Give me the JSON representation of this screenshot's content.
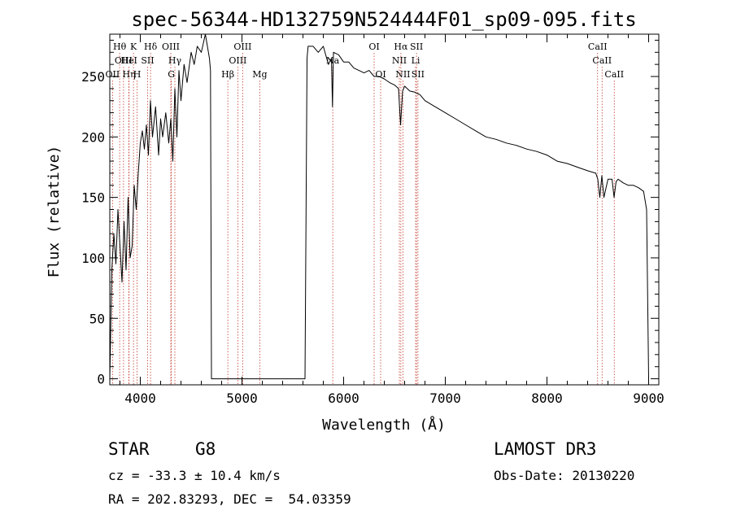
{
  "chart_data": {
    "type": "line",
    "title": "spec-56344-HD132759N524444F01_sp09-095.fits",
    "xlabel": "Wavelength (Å)",
    "ylabel": "Flux (relative)",
    "xlim": [
      3700,
      9100
    ],
    "ylim": [
      -5,
      285
    ],
    "xticks": [
      4000,
      5000,
      6000,
      7000,
      8000,
      9000
    ],
    "xtick_labels": [
      "4000",
      "5000",
      "6000",
      "7000",
      "8000",
      "9000"
    ],
    "yticks": [
      0,
      50,
      100,
      150,
      200,
      250
    ],
    "ytick_labels": [
      "0",
      "50",
      "100",
      "150",
      "200",
      "250"
    ],
    "series": [
      {
        "name": "spectrum",
        "x": [
          3700,
          3720,
          3740,
          3760,
          3780,
          3800,
          3820,
          3840,
          3860,
          3880,
          3900,
          3920,
          3940,
          3960,
          3980,
          4000,
          4020,
          4040,
          4060,
          4080,
          4100,
          4120,
          4150,
          4180,
          4200,
          4220,
          4250,
          4280,
          4300,
          4320,
          4340,
          4360,
          4380,
          4400,
          4430,
          4460,
          4500,
          4530,
          4560,
          4600,
          4640,
          4680,
          4690,
          4700,
          5620,
          5640,
          5650,
          5700,
          5750,
          5800,
          5850,
          5880,
          5890,
          5900,
          5950,
          6000,
          6050,
          6100,
          6150,
          6200,
          6250,
          6300,
          6350,
          6400,
          6450,
          6500,
          6540,
          6560,
          6580,
          6600,
          6650,
          6700,
          6750,
          6800,
          6900,
          7000,
          7100,
          7200,
          7300,
          7400,
          7500,
          7600,
          7700,
          7800,
          7900,
          8000,
          8100,
          8200,
          8300,
          8400,
          8480,
          8500,
          8520,
          8540,
          8560,
          8600,
          8640,
          8660,
          8680,
          8700,
          8750,
          8800,
          8850,
          8900,
          8950,
          8980,
          9000
        ],
        "values": [
          0,
          90,
          120,
          95,
          140,
          110,
          80,
          130,
          90,
          150,
          100,
          110,
          160,
          140,
          170,
          195,
          205,
          190,
          210,
          185,
          230,
          200,
          225,
          185,
          215,
          200,
          220,
          195,
          215,
          180,
          240,
          200,
          255,
          230,
          260,
          245,
          270,
          260,
          275,
          270,
          285,
          265,
          255,
          0,
          0,
          265,
          275,
          275,
          270,
          275,
          260,
          265,
          225,
          270,
          268,
          262,
          262,
          257,
          255,
          253,
          255,
          250,
          250,
          248,
          245,
          243,
          240,
          210,
          238,
          242,
          238,
          237,
          235,
          230,
          225,
          220,
          215,
          210,
          205,
          200,
          198,
          195,
          193,
          190,
          188,
          185,
          180,
          178,
          175,
          172,
          170,
          165,
          150,
          168,
          150,
          165,
          165,
          150,
          163,
          165,
          162,
          160,
          160,
          158,
          155,
          140,
          0
        ]
      }
    ],
    "lines": [
      {
        "name": "OII",
        "wave": 3727,
        "row": 2
      },
      {
        "name": "Hθ",
        "wave": 3797,
        "row": 0
      },
      {
        "name": "OIII",
        "wave": 3835,
        "row": 1
      },
      {
        "name": "Hη",
        "wave": 3889,
        "row": 2
      },
      {
        "name": "HeI",
        "wave": 3889,
        "row": 1
      },
      {
        "name": "K",
        "wave": 3933,
        "row": 0
      },
      {
        "name": "H",
        "wave": 3968,
        "row": 2
      },
      {
        "name": "SII",
        "wave": 4072,
        "row": 1
      },
      {
        "name": "Hδ",
        "wave": 4101,
        "row": 0
      },
      {
        "name": "OIII",
        "wave": 4300,
        "row": 0
      },
      {
        "name": "G",
        "wave": 4305,
        "row": 2
      },
      {
        "name": "Hγ",
        "wave": 4340,
        "row": 1
      },
      {
        "name": "Hβ",
        "wave": 4861,
        "row": 2
      },
      {
        "name": "OIII",
        "wave": 4959,
        "row": 1
      },
      {
        "name": "OIII",
        "wave": 5007,
        "row": 0
      },
      {
        "name": "Mg",
        "wave": 5175,
        "row": 2
      },
      {
        "name": "Na",
        "wave": 5893,
        "row": 1
      },
      {
        "name": "OI",
        "wave": 6300,
        "row": 0
      },
      {
        "name": "OI",
        "wave": 6364,
        "row": 2
      },
      {
        "name": "NII",
        "wave": 6548,
        "row": 1
      },
      {
        "name": "Hα",
        "wave": 6563,
        "row": 0
      },
      {
        "name": "NII",
        "wave": 6583,
        "row": 2
      },
      {
        "name": "Li",
        "wave": 6708,
        "row": 1
      },
      {
        "name": "SII",
        "wave": 6717,
        "row": 0
      },
      {
        "name": "SII",
        "wave": 6731,
        "row": 2
      },
      {
        "name": "CaII",
        "wave": 8498,
        "row": 0
      },
      {
        "name": "CaII",
        "wave": 8542,
        "row": 1
      },
      {
        "name": "CaII",
        "wave": 8662,
        "row": 2
      }
    ]
  },
  "info": {
    "class_label": "STAR",
    "subclass": "G8",
    "survey": "LAMOST DR3",
    "cz": "cz = -33.3 ± 10.4 km/s",
    "obs_date": "Obs-Date: 20130220",
    "coords": "RA = 202.83293, DEC =  54.03359"
  }
}
